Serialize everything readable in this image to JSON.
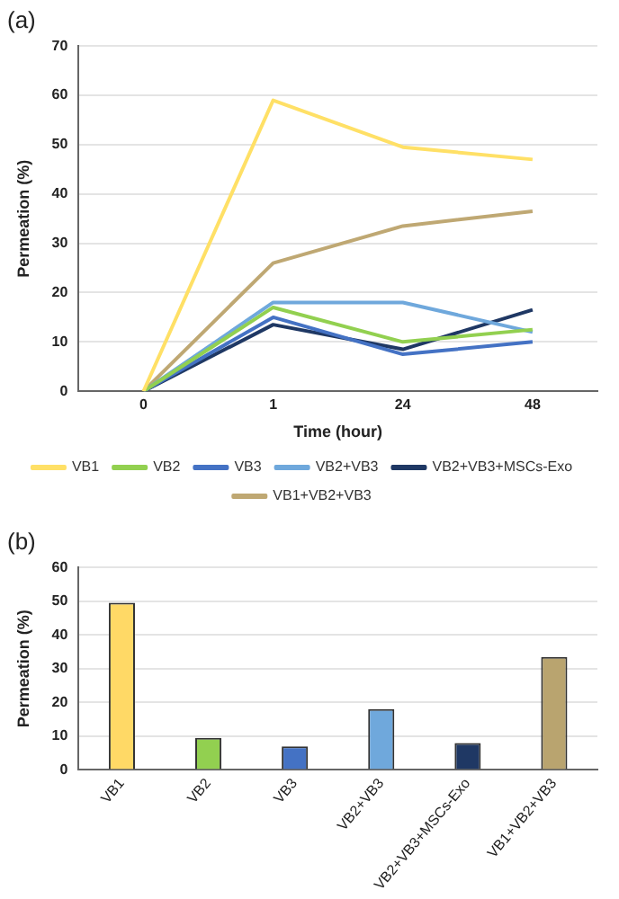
{
  "chart_data": [
    {
      "type": "line",
      "title": "(a)",
      "xlabel": "Time (hour)",
      "ylabel": "Permeation (%)",
      "categories": [
        "0",
        "1",
        "24",
        "48"
      ],
      "ylim": [
        0,
        70
      ],
      "yticks": [
        0,
        10,
        20,
        30,
        40,
        50,
        60,
        70
      ],
      "grid": "y",
      "legend": "bottom",
      "marker": "none",
      "series": [
        {
          "name": "VB1",
          "color": "#ffe066",
          "values": [
            0,
            59,
            49.5,
            47
          ]
        },
        {
          "name": "VB2",
          "color": "#92d050",
          "values": [
            0,
            17,
            10,
            12.5
          ]
        },
        {
          "name": "VB3",
          "color": "#4472c4",
          "values": [
            0,
            15,
            7.5,
            10
          ]
        },
        {
          "name": "VB2+VB3",
          "color": "#6fa8dc",
          "values": [
            0,
            18,
            18,
            12
          ]
        },
        {
          "name": "VB2+VB3+MSCs-Exo",
          "color": "#1f3864",
          "values": [
            0,
            13.5,
            8.5,
            16.5
          ]
        },
        {
          "name": "VB1+VB2+VB3",
          "color": "#bfa873",
          "values": [
            0,
            26,
            33.5,
            36.5
          ]
        }
      ]
    },
    {
      "type": "bar",
      "title": "(b)",
      "ylabel": "Permeation (%)",
      "categories": [
        "VB1",
        "VB2",
        "VB3",
        "VB2+VB3",
        "VB2+VB3+MSCs-Exo",
        "VB1+VB2+VB3"
      ],
      "ylim": [
        0,
        60
      ],
      "yticks": [
        0,
        10,
        20,
        30,
        40,
        50,
        60
      ],
      "grid": "y",
      "values": [
        49.5,
        9.5,
        7,
        18,
        8,
        33.5
      ],
      "colors": [
        "#ffd966",
        "#92d050",
        "#4472c4",
        "#6fa8dc",
        "#1f3864",
        "#b9a46f"
      ]
    }
  ]
}
